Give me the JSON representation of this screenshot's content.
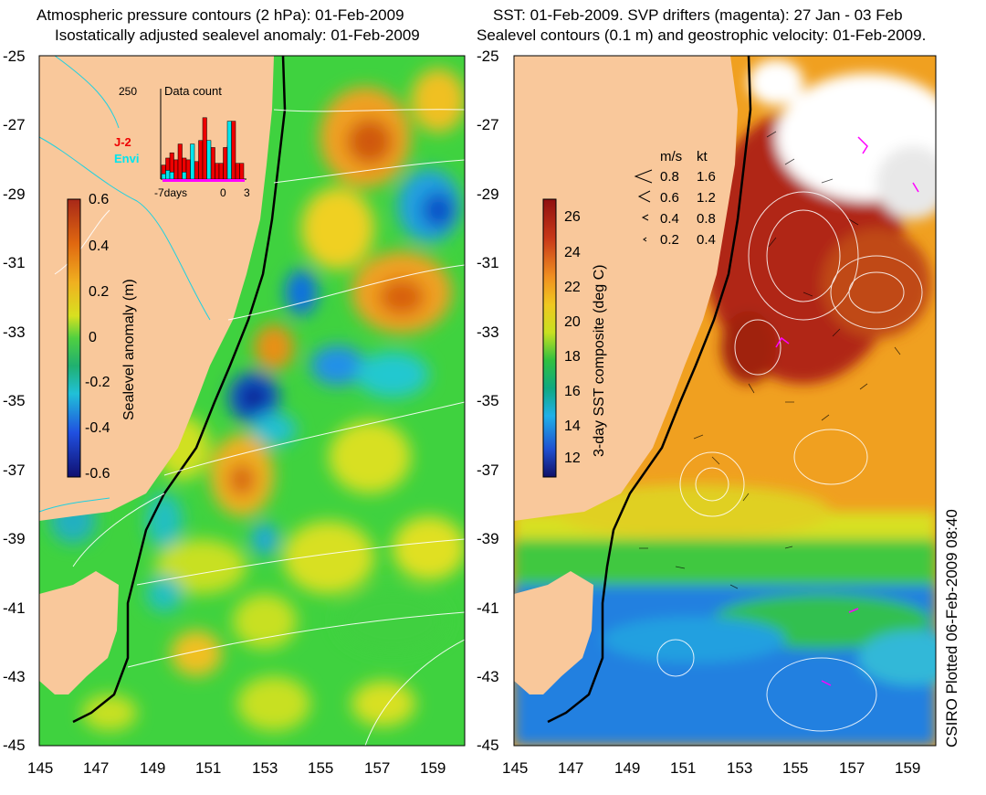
{
  "left_panel": {
    "title_line1": "Atmospheric pressure contours (2 hPa): 01-Feb-2009",
    "title_line2": "Isostatically adjusted sealevel anomaly: 01-Feb-2009",
    "y_ticks": [
      "-25",
      "-27",
      "-29",
      "-31",
      "-33",
      "-35",
      "-37",
      "-39",
      "-41",
      "-43",
      "-45"
    ],
    "x_ticks": [
      "145",
      "147",
      "149",
      "151",
      "153",
      "155",
      "157",
      "159"
    ],
    "colorbar": {
      "label": "Sealevel anomaly (m)",
      "ticks": [
        "0.6",
        "0.4",
        "0.2",
        "0",
        "-0.2",
        "-0.4",
        "-0.6"
      ]
    },
    "inset": {
      "title": "Data count",
      "y_max": "250",
      "x_labels": [
        "-7days",
        "0",
        "3"
      ],
      "legend": [
        {
          "label": "J-2",
          "color": "#ee0000"
        },
        {
          "label": "Envi",
          "color": "#00e5ee"
        }
      ],
      "bars_j2": [
        40,
        60,
        75,
        55,
        100,
        60,
        55,
        50,
        50,
        110,
        175,
        80,
        90,
        45,
        45,
        90,
        95,
        165,
        45,
        45
      ],
      "bars_envi": [
        15,
        25,
        20,
        0,
        0,
        20,
        0,
        100,
        0,
        0,
        0,
        110,
        0,
        0,
        0,
        0,
        165,
        0,
        0,
        0
      ]
    }
  },
  "right_panel": {
    "title_line1": "SST: 01-Feb-2009. SVP drifters (magenta): 27 Jan - 03 Feb",
    "title_line2": "Sealevel contours (0.1 m) and geostrophic velocity: 01-Feb-2009.",
    "y_ticks": [
      "-25",
      "-27",
      "-29",
      "-31",
      "-33",
      "-35",
      "-37",
      "-39",
      "-41",
      "-43",
      "-45"
    ],
    "x_ticks": [
      "145",
      "147",
      "149",
      "151",
      "153",
      "155",
      "157",
      "159"
    ],
    "colorbar": {
      "label": "3-day SST composite (deg C)",
      "ticks": [
        "26",
        "24",
        "22",
        "20",
        "18",
        "16",
        "14",
        "12"
      ]
    },
    "velocity_legend": {
      "header_ms": "m/s",
      "header_kt": "kt",
      "rows": [
        {
          "ms": "0.8",
          "kt": "1.6"
        },
        {
          "ms": "0.6",
          "kt": "1.2"
        },
        {
          "ms": "0.4",
          "kt": "0.8"
        },
        {
          "ms": "0.2",
          "kt": "0.4"
        }
      ]
    }
  },
  "credit": "CSIRO Plotted 06-Feb-2009 08:40",
  "colors": {
    "land": "#f9c89b",
    "ocean_green": "#3fd23f",
    "anomaly_high": "#c83a10",
    "anomaly_low": "#1030b0",
    "sst_warm": "#a02010",
    "sst_cool": "#1a6ee8",
    "contour": "#ffffff",
    "shelf": "#000000",
    "drifter": "#ff00ff"
  }
}
